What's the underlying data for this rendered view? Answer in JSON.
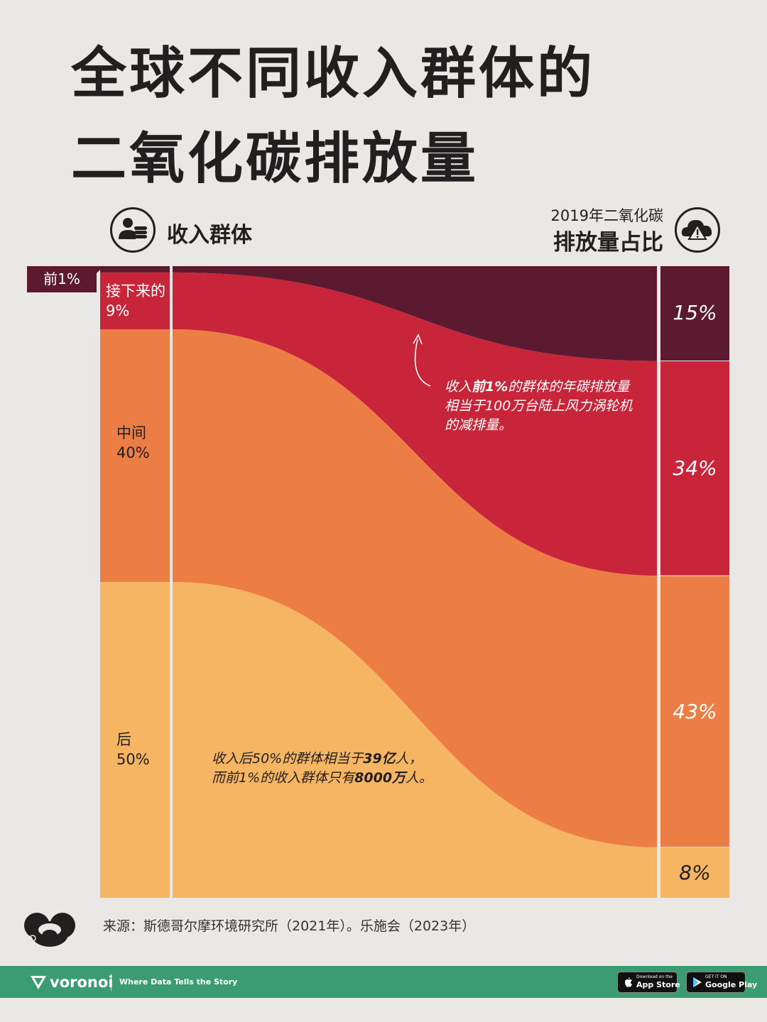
{
  "title": {
    "line1": "全球不同收入群体的",
    "line2": "二氧化碳排放量"
  },
  "left_header": {
    "label": "收入群体",
    "icon": "coins-person-icon"
  },
  "right_header": {
    "sub": "2019年二氧化碳",
    "main": "排放量占比",
    "icon": "cloud-warning-icon"
  },
  "colors": {
    "top1": "#5c1a31",
    "next9": "#c8243a",
    "middle40": "#ec7d44",
    "bottom50": "#f5b562",
    "background": "#e9e8e5",
    "footer": "#3b9b73"
  },
  "chart_data": {
    "type": "sankey",
    "groups": [
      {
        "label": "前1%",
        "population_share": 1,
        "emission_share": 15,
        "emission_label": "15%",
        "color": "#5c1a31"
      },
      {
        "label_line1": "接下来的",
        "label_line2": "9%",
        "population_share": 9,
        "emission_share": 34,
        "emission_label": "34%",
        "color": "#c8243a"
      },
      {
        "label_line1": "中间",
        "label_line2": "40%",
        "population_share": 40,
        "emission_share": 43,
        "emission_label": "43%",
        "color": "#ec7d44"
      },
      {
        "label_line1": "后",
        "label_line2": "50%",
        "population_share": 50,
        "emission_share": 8,
        "emission_label": "8%",
        "color": "#f5b562"
      }
    ]
  },
  "annotations": {
    "top": {
      "pre": "收入",
      "bold": "前1%",
      "post": "的群体的年碳排放量",
      "line2": "相当于100万台陆上风力涡轮机",
      "line3": "的减排量。"
    },
    "bottom": {
      "l1_pre": "收入后50%的群体相当于",
      "l1_bold": "39亿",
      "l1_post": "人，",
      "l2_pre": "而前1%的收入群体只有",
      "l2_bold": "8000万",
      "l2_post": "人。"
    }
  },
  "source": "来源：斯德哥尔摩环境研究所（2021年）。乐施会（2023年）",
  "footer": {
    "brand": "voronoi",
    "tagline": "Where Data Tells the Story",
    "appstore_small": "Download on the",
    "appstore_big": "App Store",
    "googleplay_small": "GET IT ON",
    "googleplay_big": "Google Play"
  }
}
